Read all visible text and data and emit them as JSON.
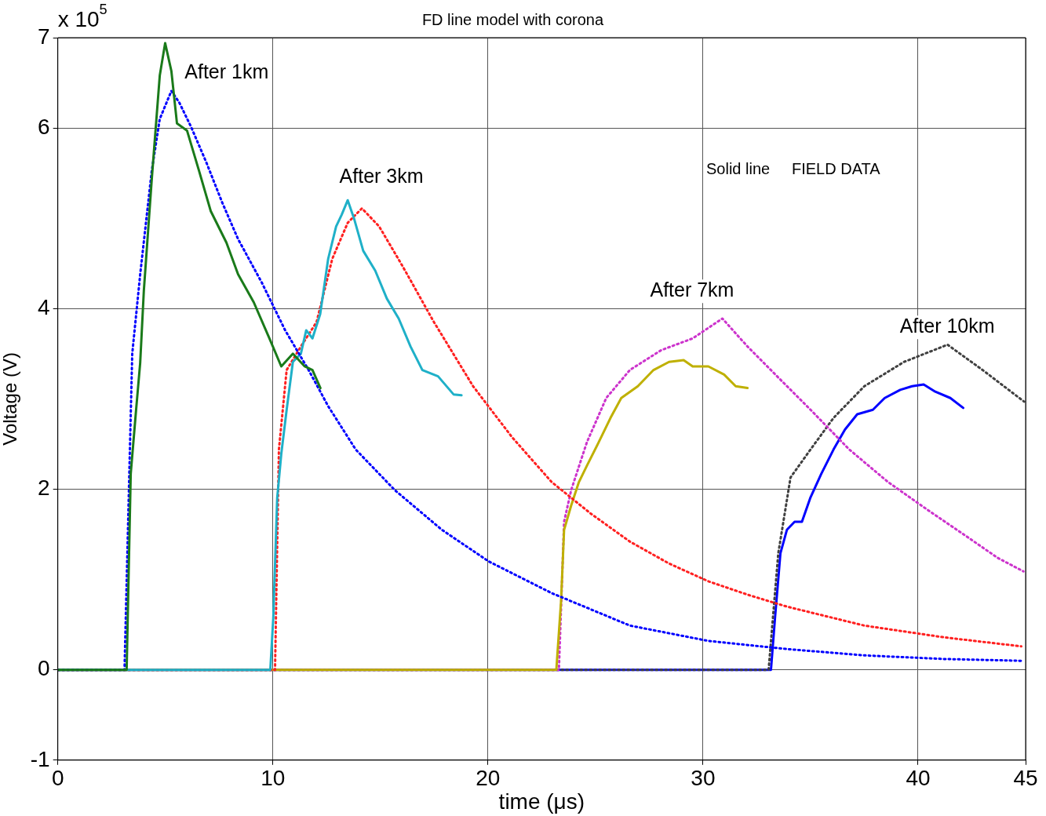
{
  "chart_data": {
    "type": "line",
    "title": "FD line model with corona",
    "xlabel": "time (μs)",
    "ylabel": "Voltage (V)",
    "xlim": [
      0,
      45
    ],
    "xticks": [
      0,
      10,
      20,
      30,
      40,
      45
    ],
    "ylim": [
      -1,
      7
    ],
    "yticks": [
      -1,
      0,
      2,
      4,
      6,
      7
    ],
    "grid": true,
    "legend": false,
    "marker": "none",
    "annotations": [
      "x 10$^{5}$",
      "Solid line     FIELD DATA",
      "After 1km",
      "After 3km",
      "After 7km",
      "After 10km"
    ],
    "series": [
      {
        "color": "#1a7a1a",
        "line_style": "solid",
        "x": [
          0,
          3.2,
          3.39,
          3.64,
          3.83,
          4.0,
          4.37,
          4.74,
          4.99,
          5.28,
          5.54,
          6.01,
          6.56,
          7.11,
          7.84,
          8.38,
          9.11,
          9.84,
          10.39,
          10.93,
          11.48,
          11.84,
          12.21
        ],
        "values": [
          0,
          0,
          2.17,
          2.88,
          3.4,
          4.2,
          5.44,
          6.58,
          6.94,
          6.63,
          6.05,
          5.97,
          5.53,
          5.08,
          4.73,
          4.38,
          4.07,
          3.67,
          3.36,
          3.5,
          3.36,
          3.32,
          3.12
        ]
      },
      {
        "color": "#0000ff",
        "line_style": "dotted",
        "x": [
          0,
          3.1,
          3.46,
          3.83,
          4.37,
          4.74,
          5.28,
          5.65,
          6.2,
          6.92,
          7.65,
          8.38,
          9.48,
          10.57,
          11.66,
          12.57,
          13.85,
          15.67,
          17.86,
          20.04,
          22.96,
          26.6,
          30.25,
          33.9,
          37.5,
          41.2,
          44.8
        ],
        "values": [
          0,
          0,
          3.5,
          4.38,
          5.53,
          6.1,
          6.41,
          6.28,
          6.01,
          5.61,
          5.17,
          4.77,
          4.29,
          3.76,
          3.32,
          2.92,
          2.44,
          1.99,
          1.55,
          1.2,
          0.85,
          0.49,
          0.32,
          0.23,
          0.16,
          0.12,
          0.1
        ]
      },
      {
        "color": "#1fb0c8",
        "line_style": "solid",
        "x": [
          0,
          9.88,
          10.02,
          10.2,
          10.39,
          10.64,
          10.93,
          11.3,
          11.55,
          11.84,
          12.2,
          12.57,
          12.94,
          13.2,
          13.48,
          13.77,
          14.2,
          14.76,
          15.3,
          15.85,
          16.4,
          16.95,
          17.68,
          18.4,
          18.77
        ],
        "values": [
          0,
          0,
          0.58,
          1.9,
          2.39,
          2.88,
          3.41,
          3.5,
          3.76,
          3.67,
          3.94,
          4.55,
          4.91,
          5.04,
          5.2,
          5.0,
          4.64,
          4.42,
          4.11,
          3.89,
          3.58,
          3.32,
          3.25,
          3.05,
          3.04
        ]
      },
      {
        "color": "#ff2020",
        "line_style": "dotted",
        "x": [
          0,
          10.1,
          10.28,
          10.64,
          11.3,
          12.03,
          12.76,
          13.48,
          14.14,
          14.94,
          16.03,
          17.49,
          19.31,
          21.14,
          22.96,
          24.78,
          26.6,
          28.4,
          30.25,
          32.1,
          33.9,
          37.5,
          41.2,
          44.8
        ],
        "values": [
          0,
          0,
          2.44,
          3.32,
          3.58,
          3.85,
          4.55,
          4.95,
          5.11,
          4.91,
          4.47,
          3.85,
          3.14,
          2.57,
          2.08,
          1.73,
          1.42,
          1.18,
          0.98,
          0.83,
          0.7,
          0.49,
          0.36,
          0.26
        ]
      },
      {
        "color": "#bfb000",
        "line_style": "solid",
        "x": [
          0,
          23.18,
          23.4,
          23.54,
          23.87,
          24.23,
          24.6,
          25.15,
          25.7,
          26.2,
          26.97,
          27.7,
          28.42,
          29.1,
          29.52,
          30.25,
          30.98,
          31.52,
          32.07
        ],
        "values": [
          0,
          0,
          0.76,
          1.55,
          1.82,
          2.08,
          2.26,
          2.52,
          2.79,
          3.01,
          3.14,
          3.32,
          3.41,
          3.43,
          3.36,
          3.36,
          3.27,
          3.14,
          3.12
        ]
      },
      {
        "color": "#cc33cc",
        "line_style": "dotted",
        "x": [
          0,
          23.3,
          23.54,
          23.87,
          24.6,
          25.5,
          26.6,
          28.06,
          29.52,
          30.9,
          32.07,
          33.53,
          35.0,
          36.8,
          38.6,
          40.45,
          42.3,
          43.7,
          44.9
        ],
        "values": [
          0,
          0,
          1.64,
          1.99,
          2.52,
          3.01,
          3.32,
          3.54,
          3.67,
          3.89,
          3.58,
          3.23,
          2.88,
          2.44,
          2.08,
          1.77,
          1.47,
          1.24,
          1.09
        ]
      },
      {
        "color": "#404040",
        "line_style": "dotted",
        "x": [
          0,
          33.05,
          33.5,
          34.07,
          35.0,
          36.07,
          37.5,
          39.35,
          41.37,
          43.0,
          44.93
        ],
        "values": [
          0,
          0,
          1.29,
          2.13,
          2.44,
          2.79,
          3.14,
          3.41,
          3.6,
          3.32,
          2.97
        ]
      },
      {
        "color": "#0000ff",
        "line_style": "solid",
        "x": [
          0,
          33.16,
          33.35,
          33.6,
          33.9,
          34.26,
          34.6,
          35.0,
          35.5,
          36.07,
          36.6,
          37.17,
          37.9,
          38.45,
          39.17,
          39.72,
          40.26,
          40.8,
          41.5,
          42.1
        ],
        "values": [
          0,
          0,
          0.58,
          1.29,
          1.55,
          1.64,
          1.64,
          1.91,
          2.17,
          2.44,
          2.66,
          2.83,
          2.88,
          3.01,
          3.1,
          3.14,
          3.16,
          3.08,
          3.01,
          2.9
        ]
      }
    ]
  }
}
